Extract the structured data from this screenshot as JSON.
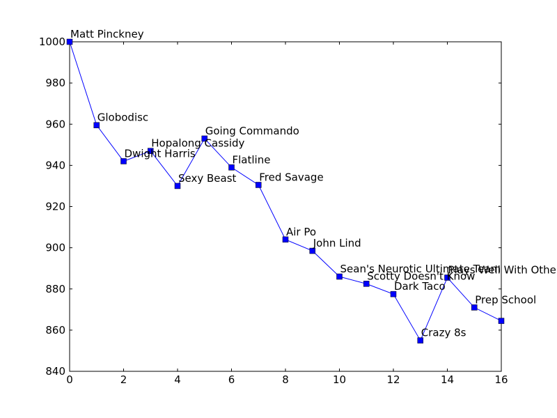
{
  "chart_data": {
    "type": "line",
    "title": "",
    "xlabel": "",
    "ylabel": "",
    "xlim": [
      0,
      16
    ],
    "ylim": [
      840,
      1000
    ],
    "xticks": [
      0,
      2,
      4,
      6,
      8,
      10,
      12,
      14,
      16
    ],
    "yticks": [
      840,
      860,
      880,
      900,
      920,
      940,
      960,
      980,
      1000
    ],
    "grid": false,
    "line_color": "#0000ff",
    "marker": "square",
    "points": [
      {
        "x": 0,
        "y": 1000,
        "label": "Matt Pinckney"
      },
      {
        "x": 1,
        "y": 959.5,
        "label": "Globodisc"
      },
      {
        "x": 2,
        "y": 942,
        "label": "Dwight Harris"
      },
      {
        "x": 3,
        "y": 947,
        "label": "Hopalong Cassidy"
      },
      {
        "x": 4,
        "y": 930,
        "label": "Sexy Beast"
      },
      {
        "x": 5,
        "y": 953,
        "label": "Going Commando"
      },
      {
        "x": 6,
        "y": 939,
        "label": "Flatline"
      },
      {
        "x": 7,
        "y": 930.5,
        "label": "Fred Savage"
      },
      {
        "x": 8,
        "y": 904,
        "label": "Air Po"
      },
      {
        "x": 9,
        "y": 898.5,
        "label": "John Lind"
      },
      {
        "x": 10,
        "y": 886,
        "label": "Sean's Neurotic Ultimate Team"
      },
      {
        "x": 11,
        "y": 882.5,
        "label": "Scotty Doesn't Know"
      },
      {
        "x": 12,
        "y": 877.5,
        "label": "Dark Taco"
      },
      {
        "x": 13,
        "y": 855,
        "label": "Crazy 8s"
      },
      {
        "x": 14,
        "y": 885.5,
        "label": "Plays Well With Others"
      },
      {
        "x": 15,
        "y": 871,
        "label": "Prep School"
      },
      {
        "x": 16,
        "y": 864.5,
        "label": ""
      }
    ]
  }
}
